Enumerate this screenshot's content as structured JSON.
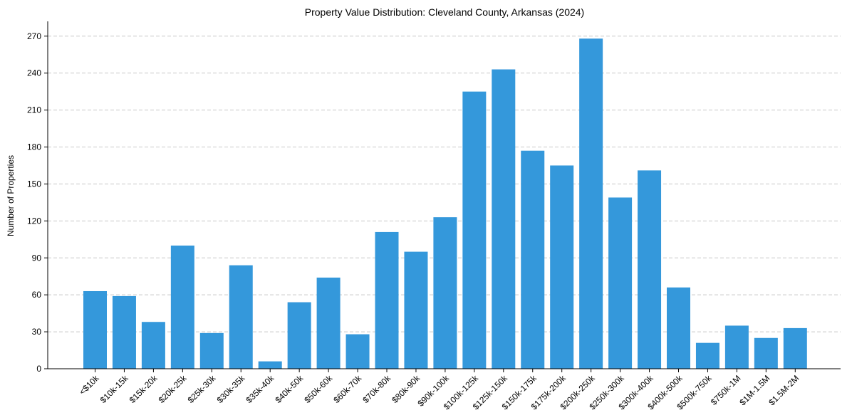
{
  "chart_data": {
    "type": "bar",
    "title": "Property Value Distribution: Cleveland County, Arkansas (2024)",
    "xlabel": "",
    "ylabel": "Number of Properties",
    "ylim": [
      0,
      282
    ],
    "yticks": [
      0,
      30,
      60,
      90,
      120,
      150,
      180,
      210,
      240,
      270
    ],
    "grid": "horizontal-dashed",
    "bar_color": "#3498db",
    "categories": [
      "<$10k",
      "$10k-15k",
      "$15k-20k",
      "$20k-25k",
      "$25k-30k",
      "$30k-35k",
      "$35k-40k",
      "$40k-50k",
      "$50k-60k",
      "$60k-70k",
      "$70k-80k",
      "$80k-90k",
      "$90k-100k",
      "$100k-125k",
      "$125k-150k",
      "$150k-175k",
      "$175k-200k",
      "$200k-250k",
      "$250k-300k",
      "$300k-400k",
      "$400k-500k",
      "$500k-750k",
      "$750k-1M",
      "$1M-1.5M",
      "$1.5M-2M"
    ],
    "values": [
      63,
      59,
      38,
      100,
      29,
      84,
      6,
      54,
      74,
      28,
      111,
      95,
      123,
      225,
      243,
      177,
      165,
      268,
      139,
      161,
      66,
      21,
      35,
      25,
      33
    ]
  }
}
